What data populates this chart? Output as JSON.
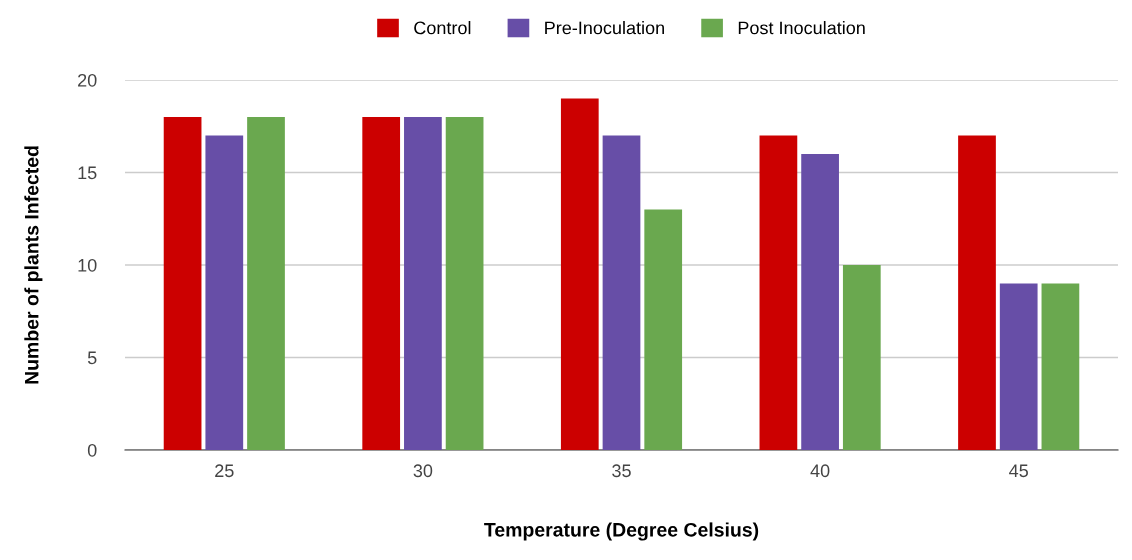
{
  "chart_data": {
    "type": "bar",
    "xlabel": "Temperature (Degree Celsius)",
    "ylabel": "Number of plants Infected",
    "categories": [
      "25",
      "30",
      "35",
      "40",
      "45"
    ],
    "series": [
      {
        "name": "Control",
        "color": "#cc0000",
        "values": [
          18,
          18,
          19,
          17,
          17
        ]
      },
      {
        "name": "Pre-Inoculation",
        "color": "#674ea7",
        "values": [
          17,
          18,
          17,
          16,
          9
        ]
      },
      {
        "name": "Post Inoculation",
        "color": "#6aa84f",
        "values": [
          18,
          18,
          13,
          10,
          9
        ]
      }
    ],
    "ylim": [
      0,
      20
    ],
    "yticks": [
      0,
      5,
      10,
      15,
      20
    ],
    "grid": "y",
    "legend": "top"
  }
}
